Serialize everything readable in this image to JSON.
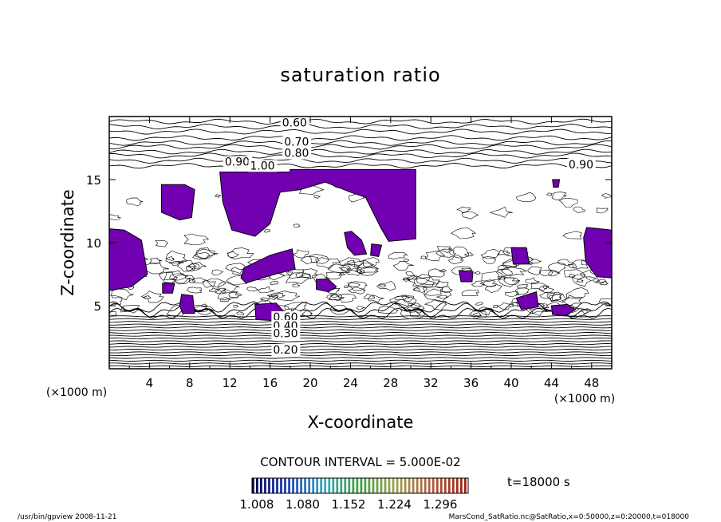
{
  "chart_data": {
    "type": "contour",
    "title": "saturation ratio",
    "xlabel": "X-coordinate",
    "ylabel": "Z-coordinate",
    "x_unit_label": "(×1000 m)",
    "y_unit_label": "(×1000 m)",
    "xlim": [
      0,
      50
    ],
    "ylim": [
      0,
      20
    ],
    "x_ticks": [
      4,
      8,
      12,
      16,
      20,
      24,
      28,
      32,
      36,
      40,
      44,
      48
    ],
    "y_ticks": [
      5,
      10,
      15
    ],
    "contour_interval_text": "CONTOUR INTERVAL = 5.000E-02",
    "contour_labels": [
      {
        "x": 17.2,
        "z": 19.2,
        "text": "0.60"
      },
      {
        "x": 17.4,
        "z": 17.7,
        "text": "0.70"
      },
      {
        "x": 17.4,
        "z": 16.8,
        "text": "0.80"
      },
      {
        "x": 11.5,
        "z": 16.1,
        "text": "0.90"
      },
      {
        "x": 14.0,
        "z": 15.8,
        "text": "1.00"
      },
      {
        "x": 45.7,
        "z": 15.9,
        "text": "0.90"
      },
      {
        "x": 16.3,
        "z": 3.8,
        "text": "0.60"
      },
      {
        "x": 16.3,
        "z": 3.1,
        "text": "0.40"
      },
      {
        "x": 16.3,
        "z": 2.5,
        "text": "0.30"
      },
      {
        "x": 16.3,
        "z": 1.2,
        "text": "0.20"
      }
    ],
    "supersaturated_regions": [
      {
        "name": "upper-center",
        "points": [
          [
            11,
            15.6
          ],
          [
            18,
            15.6
          ],
          [
            18,
            15.8
          ],
          [
            30.5,
            15.8
          ],
          [
            30.5,
            10.3
          ],
          [
            27.8,
            10.1
          ],
          [
            27,
            11.2
          ],
          [
            25.5,
            13.6
          ],
          [
            24,
            14
          ],
          [
            21.5,
            14.8
          ],
          [
            19,
            14.2
          ],
          [
            17,
            14
          ],
          [
            16,
            11.5
          ],
          [
            14.5,
            10.5
          ],
          [
            12.2,
            11
          ],
          [
            11.3,
            13.2
          ]
        ]
      },
      {
        "name": "upper-left",
        "points": [
          [
            5.2,
            14.6
          ],
          [
            7.5,
            14.6
          ],
          [
            8.5,
            14.2
          ],
          [
            8.2,
            12
          ],
          [
            7,
            11.8
          ],
          [
            5.2,
            12.4
          ]
        ]
      },
      {
        "name": "left-edge",
        "points": [
          [
            0,
            11.1
          ],
          [
            1.5,
            11
          ],
          [
            3.2,
            10.2
          ],
          [
            3.8,
            7.5
          ],
          [
            2.2,
            6.5
          ],
          [
            0,
            6.2
          ]
        ]
      },
      {
        "name": "left-lower-small",
        "points": [
          [
            5.3,
            6.8
          ],
          [
            6.5,
            6.8
          ],
          [
            6.3,
            6
          ],
          [
            5.3,
            6
          ]
        ]
      },
      {
        "name": "near-8-5",
        "points": [
          [
            7.2,
            5.9
          ],
          [
            8.3,
            5.8
          ],
          [
            8.5,
            4.4
          ],
          [
            7.3,
            4.4
          ],
          [
            7,
            5
          ]
        ]
      },
      {
        "name": "center-12",
        "points": [
          [
            13.4,
            8
          ],
          [
            16,
            9
          ],
          [
            18.2,
            9.5
          ],
          [
            18.5,
            7.9
          ],
          [
            16.5,
            7.5
          ],
          [
            13.6,
            6.8
          ],
          [
            13.1,
            7.2
          ]
        ]
      },
      {
        "name": "lower-16",
        "points": [
          [
            14.5,
            5.1
          ],
          [
            16.6,
            5.2
          ],
          [
            17.3,
            4.6
          ],
          [
            16.8,
            3.8
          ],
          [
            14.6,
            3.9
          ]
        ]
      },
      {
        "name": "lower-21",
        "points": [
          [
            20.6,
            7.1
          ],
          [
            21.8,
            7.1
          ],
          [
            22.6,
            6.5
          ],
          [
            21.8,
            6.1
          ],
          [
            20.6,
            6.3
          ]
        ]
      },
      {
        "name": "mid-24",
        "points": [
          [
            23.4,
            10.8
          ],
          [
            24.1,
            10.9
          ],
          [
            25.1,
            10.2
          ],
          [
            25.6,
            9.1
          ],
          [
            24.4,
            9
          ],
          [
            23.7,
            9.6
          ]
        ]
      },
      {
        "name": "mid-26",
        "points": [
          [
            26.1,
            9.9
          ],
          [
            27.1,
            9.8
          ],
          [
            26.8,
            8.9
          ],
          [
            26,
            9
          ]
        ]
      },
      {
        "name": "right-35",
        "points": [
          [
            34.8,
            7.8
          ],
          [
            36.2,
            7.7
          ],
          [
            36.1,
            6.9
          ],
          [
            35,
            6.9
          ]
        ]
      },
      {
        "name": "right-40",
        "points": [
          [
            40,
            9.6
          ],
          [
            41.5,
            9.6
          ],
          [
            41.8,
            8.3
          ],
          [
            40.2,
            8.3
          ]
        ]
      },
      {
        "name": "right-42",
        "points": [
          [
            40.5,
            5.6
          ],
          [
            42.5,
            6.1
          ],
          [
            42.7,
            4.9
          ],
          [
            41,
            4.7
          ]
        ]
      },
      {
        "name": "right-44",
        "points": [
          [
            44,
            5
          ],
          [
            45.6,
            5.1
          ],
          [
            46.4,
            4.7
          ],
          [
            45.4,
            4.2
          ],
          [
            44.1,
            4.3
          ]
        ]
      },
      {
        "name": "right-45-upper",
        "points": [
          [
            44.1,
            15
          ],
          [
            44.8,
            15
          ],
          [
            44.7,
            14.4
          ],
          [
            44.2,
            14.4
          ]
        ]
      },
      {
        "name": "right-edge",
        "points": [
          [
            47.5,
            11.2
          ],
          [
            50,
            11
          ],
          [
            50,
            7.2
          ],
          [
            48.5,
            7.3
          ],
          [
            47.4,
            8.5
          ],
          [
            47.2,
            10.4
          ]
        ]
      }
    ],
    "colorbar": {
      "tick_labels": [
        "1.008",
        "1.080",
        "1.152",
        "1.224",
        "1.296"
      ],
      "range": [
        1.008,
        1.296
      ],
      "colors": [
        "#00004a",
        "#1f3fc0",
        "#35a8c0",
        "#3fa03f",
        "#a0a050",
        "#b06040",
        "#a02010"
      ]
    },
    "fill_color": "#7000b0",
    "time_text": "t=18000 s",
    "footer_left": "/usr/bin/gpview  2008-11-21",
    "footer_right": "MarsCond_SatRatio.nc@SatRatio,x=0:50000,z=0:20000,t=018000"
  }
}
